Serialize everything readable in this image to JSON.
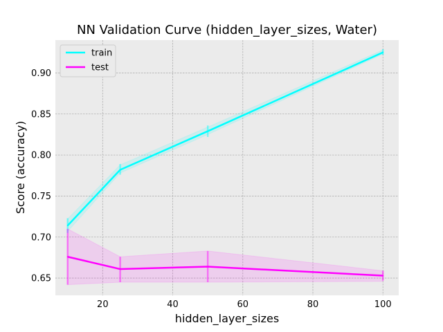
{
  "chart_data": {
    "type": "line",
    "title": "NN Validation Curve (hidden_layer_sizes, Water)",
    "xlabel": "hidden_layer_sizes",
    "ylabel": "Score (accuracy)",
    "xlim": [
      6.5,
      104.5
    ],
    "ylim": [
      0.629,
      0.94
    ],
    "xticks": [
      20,
      40,
      60,
      80,
      100
    ],
    "yticks": [
      0.65,
      0.7,
      0.75,
      0.8,
      0.85,
      0.9
    ],
    "ytick_labels": [
      "0.65",
      "0.70",
      "0.75",
      "0.80",
      "0.85",
      "0.90"
    ],
    "grid": true,
    "legend_position": "top-left",
    "x": [
      10,
      25,
      50,
      100
    ],
    "series": [
      {
        "name": "train",
        "color": "#00ffff",
        "values": [
          0.714,
          0.782,
          0.829,
          0.925
        ],
        "lower": [
          0.707,
          0.778,
          0.825,
          0.923
        ],
        "upper": [
          0.722,
          0.788,
          0.834,
          0.928
        ],
        "err_low": [
          0.705,
          0.776,
          0.822,
          0.922
        ],
        "err_high": [
          0.723,
          0.789,
          0.836,
          0.929
        ]
      },
      {
        "name": "test",
        "color": "#ff00ff",
        "values": [
          0.676,
          0.661,
          0.664,
          0.653
        ],
        "lower": [
          0.642,
          0.645,
          0.645,
          0.646
        ],
        "upper": [
          0.71,
          0.676,
          0.683,
          0.659
        ],
        "err_low": [
          0.642,
          0.645,
          0.645,
          0.647
        ],
        "err_high": [
          0.71,
          0.676,
          0.683,
          0.659
        ]
      }
    ]
  }
}
